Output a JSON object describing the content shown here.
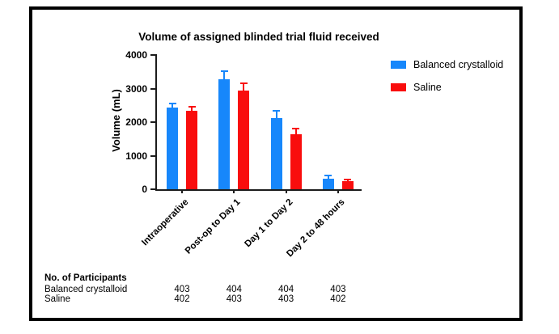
{
  "figure": {
    "border_color": "#000000",
    "background": "#ffffff"
  },
  "chart_data": {
    "type": "bar",
    "title": "Volume of assigned blinded trial fluid received",
    "xlabel": "",
    "ylabel": "Volume (mL)",
    "ylim": [
      0,
      4000
    ],
    "yticks": [
      0,
      1000,
      2000,
      3000,
      4000
    ],
    "grid": false,
    "legend_position": "top-right",
    "categories": [
      "Intraoperative",
      "Post-op to Day 1",
      "Day 1 to Day 2",
      "Day 2 to 48 hours"
    ],
    "series": [
      {
        "name": "Balanced crystalloid",
        "color": "#1787fb",
        "values": [
          2430,
          3280,
          2110,
          310
        ],
        "error_plus": [
          120,
          230,
          220,
          90
        ]
      },
      {
        "name": "Saline",
        "color": "#f90d0d",
        "values": [
          2330,
          2930,
          1650,
          230
        ],
        "error_plus": [
          130,
          220,
          160,
          60
        ]
      }
    ]
  },
  "participants_table": {
    "header": "No. of Participants",
    "rows": [
      {
        "label": "Balanced crystalloid",
        "values": [
          "403",
          "404",
          "404",
          "403"
        ]
      },
      {
        "label": "Saline",
        "values": [
          "402",
          "403",
          "403",
          "402"
        ]
      }
    ]
  }
}
